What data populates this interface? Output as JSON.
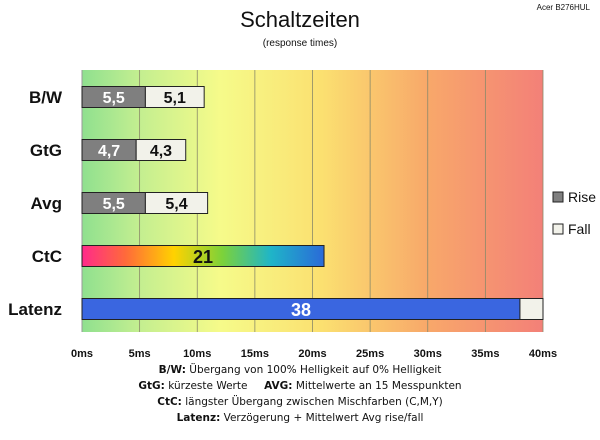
{
  "header": {
    "model": "Acer B276HUL"
  },
  "chart_data": {
    "type": "bar",
    "orientation": "horizontal",
    "title": "Schaltzeiten",
    "subtitle": "(response times)",
    "categories": [
      "B/W",
      "GtG",
      "Avg",
      "CtC",
      "Latenz"
    ],
    "series": [
      {
        "name": "Rise",
        "color": "#7f7f7f",
        "values": [
          5.5,
          4.7,
          5.5,
          null,
          null
        ]
      },
      {
        "name": "Fall",
        "color": "#f2f2ea",
        "values": [
          5.1,
          4.3,
          5.4,
          null,
          null
        ]
      }
    ],
    "extra_bars": [
      {
        "category": "CtC",
        "value": 21,
        "label": "21",
        "fill": "rainbow"
      },
      {
        "category": "Latenz",
        "value": 38,
        "label": "38",
        "fill": "#3a66e0",
        "tail": 2,
        "tail_color": "#f2f2ea"
      }
    ],
    "xticks": [
      "0ms",
      "5ms",
      "10ms",
      "15ms",
      "20ms",
      "25ms",
      "30ms",
      "35ms",
      "40ms"
    ],
    "xlim": [
      0,
      40
    ],
    "grid": true,
    "legend": {
      "placement": "right",
      "entries": [
        "Rise",
        "Fall"
      ]
    },
    "background": "gradient green-yellow-red"
  },
  "footer_lines": [
    {
      "key": "B/W:",
      "text": " Übergang von 100% Helligkeit auf 0% Helligkeit"
    },
    {
      "key": "GtG:",
      "text": " kürzeste Werte",
      "key2": "AVG:",
      "text2": " Mittelwerte an 15 Messpunkten"
    },
    {
      "key": "CtC:",
      "text": " längster Übergang zwischen Mischfarben (C,M,Y)"
    },
    {
      "key": "Latenz:",
      "text": " Verzögerung + Mittelwert Avg rise/fall"
    }
  ]
}
